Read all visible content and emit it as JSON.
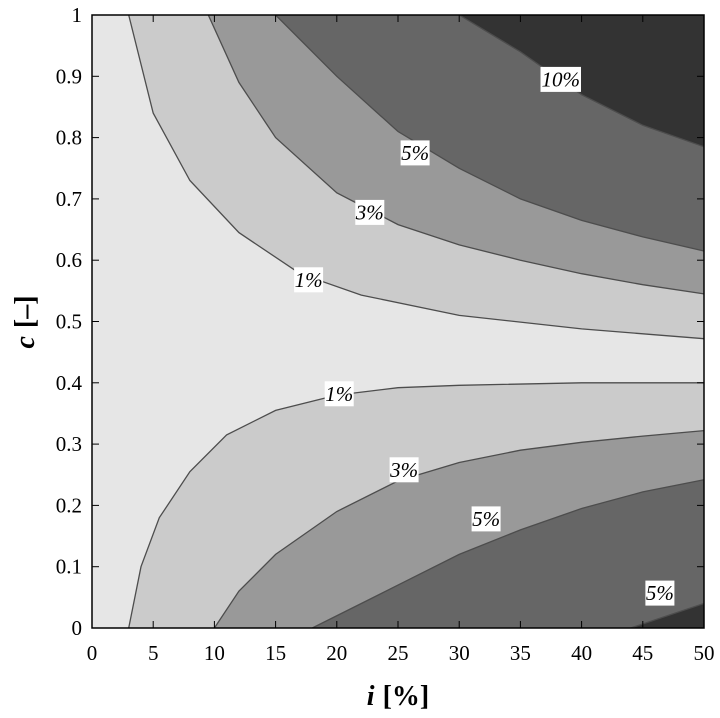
{
  "chart_data": {
    "type": "contour",
    "title": "",
    "xlabel": {
      "var": "i",
      "unit": "[%]"
    },
    "ylabel": {
      "var": "c",
      "unit": "[–]"
    },
    "xlim": [
      0,
      50
    ],
    "ylim": [
      0,
      1
    ],
    "xticks": [
      0,
      5,
      10,
      15,
      20,
      25,
      30,
      35,
      40,
      45,
      50
    ],
    "yticks": [
      0,
      0.1,
      0.2,
      0.3,
      0.4,
      0.5,
      0.6,
      0.7,
      0.8,
      0.9,
      1
    ],
    "grid": false,
    "legend": "none",
    "bands": [
      {
        "level": "below-1%",
        "color": "#e6e6e6"
      },
      {
        "level": "1%-3%",
        "color": "#cbcbcb"
      },
      {
        "level": "3%-5%",
        "color": "#999999"
      },
      {
        "level": "5%-10%",
        "color": "#666666"
      },
      {
        "level": "above-10%",
        "color": "#333333"
      }
    ],
    "contours": [
      {
        "level": "1%",
        "region": "upper",
        "points": [
          [
            3,
            1
          ],
          [
            5,
            0.84
          ],
          [
            8,
            0.73
          ],
          [
            12,
            0.645
          ],
          [
            17,
            0.578
          ],
          [
            22,
            0.543
          ],
          [
            30,
            0.51
          ],
          [
            40,
            0.488
          ],
          [
            50,
            0.472
          ]
        ]
      },
      {
        "level": "3%",
        "region": "upper",
        "points": [
          [
            9.5,
            1
          ],
          [
            12,
            0.89
          ],
          [
            15,
            0.8
          ],
          [
            20,
            0.71
          ],
          [
            25,
            0.658
          ],
          [
            30,
            0.625
          ],
          [
            35,
            0.6
          ],
          [
            40,
            0.578
          ],
          [
            45,
            0.56
          ],
          [
            50,
            0.545
          ]
        ]
      },
      {
        "level": "5%",
        "region": "upper",
        "points": [
          [
            15,
            1
          ],
          [
            20,
            0.9
          ],
          [
            25,
            0.81
          ],
          [
            30,
            0.75
          ],
          [
            35,
            0.7
          ],
          [
            40,
            0.665
          ],
          [
            45,
            0.638
          ],
          [
            50,
            0.615
          ]
        ]
      },
      {
        "level": "10%",
        "region": "upper",
        "points": [
          [
            30,
            1
          ],
          [
            35,
            0.94
          ],
          [
            40,
            0.87
          ],
          [
            45,
            0.82
          ],
          [
            50,
            0.785
          ]
        ]
      },
      {
        "level": "1%",
        "region": "lower",
        "points": [
          [
            3,
            0
          ],
          [
            4,
            0.1
          ],
          [
            5.5,
            0.18
          ],
          [
            8,
            0.255
          ],
          [
            11,
            0.315
          ],
          [
            15,
            0.355
          ],
          [
            20,
            0.38
          ],
          [
            25,
            0.392
          ],
          [
            30,
            0.396
          ],
          [
            40,
            0.4
          ],
          [
            50,
            0.4
          ]
        ]
      },
      {
        "level": "3%",
        "region": "lower",
        "points": [
          [
            10,
            0
          ],
          [
            12,
            0.06
          ],
          [
            15,
            0.12
          ],
          [
            20,
            0.19
          ],
          [
            25,
            0.24
          ],
          [
            30,
            0.27
          ],
          [
            35,
            0.29
          ],
          [
            40,
            0.303
          ],
          [
            45,
            0.313
          ],
          [
            50,
            0.322
          ]
        ]
      },
      {
        "level": "5%",
        "region": "lower",
        "points": [
          [
            18,
            0
          ],
          [
            22,
            0.04
          ],
          [
            25,
            0.07
          ],
          [
            30,
            0.12
          ],
          [
            35,
            0.16
          ],
          [
            40,
            0.195
          ],
          [
            45,
            0.222
          ],
          [
            50,
            0.242
          ]
        ]
      },
      {
        "level": "10%",
        "region": "lower",
        "points": [
          [
            44,
            0
          ],
          [
            47,
            0.02
          ],
          [
            50,
            0.04
          ]
        ]
      }
    ],
    "annotations": [
      {
        "text": "10%",
        "x": 38.3,
        "y": 0.895
      },
      {
        "text": "5%",
        "x": 26.4,
        "y": 0.775
      },
      {
        "text": "3%",
        "x": 22.7,
        "y": 0.678
      },
      {
        "text": "1%",
        "x": 17.7,
        "y": 0.568
      },
      {
        "text": "1%",
        "x": 20.2,
        "y": 0.382
      },
      {
        "text": "3%",
        "x": 25.5,
        "y": 0.258
      },
      {
        "text": "5%",
        "x": 32.2,
        "y": 0.178
      },
      {
        "text": "5%",
        "x": 46.4,
        "y": 0.057
      }
    ]
  }
}
